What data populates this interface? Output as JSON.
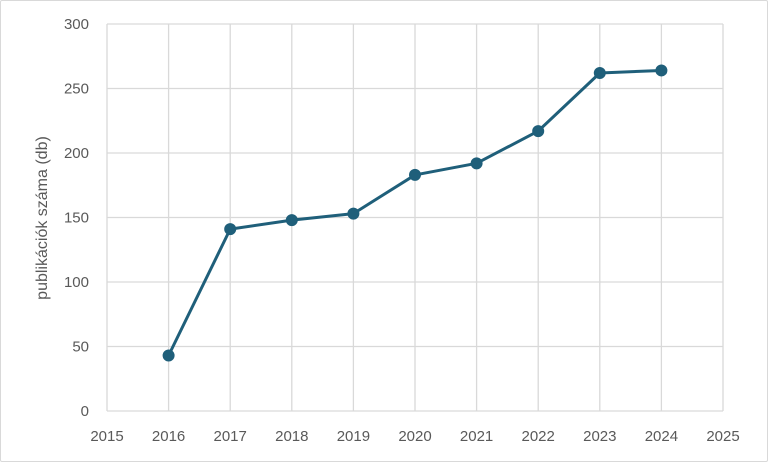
{
  "chart_data": {
    "type": "line",
    "title": "",
    "xlabel": "",
    "ylabel": "publikációk száma (db)",
    "xlim": [
      2015,
      2025
    ],
    "ylim": [
      0,
      300
    ],
    "x_ticks": [
      2015,
      2016,
      2017,
      2018,
      2019,
      2020,
      2021,
      2022,
      2023,
      2024,
      2025
    ],
    "y_ticks": [
      0,
      50,
      100,
      150,
      200,
      250,
      300
    ],
    "grid": true,
    "legend": "none",
    "colors": {
      "series": "#1f5f7a",
      "grid": "#d9d9d9",
      "text": "#595959"
    },
    "series": [
      {
        "x": [
          2016,
          2017,
          2018,
          2019,
          2020,
          2021,
          2022,
          2023,
          2024
        ],
        "values": [
          43,
          141,
          148,
          153,
          183,
          192,
          217,
          262,
          264
        ]
      }
    ]
  }
}
